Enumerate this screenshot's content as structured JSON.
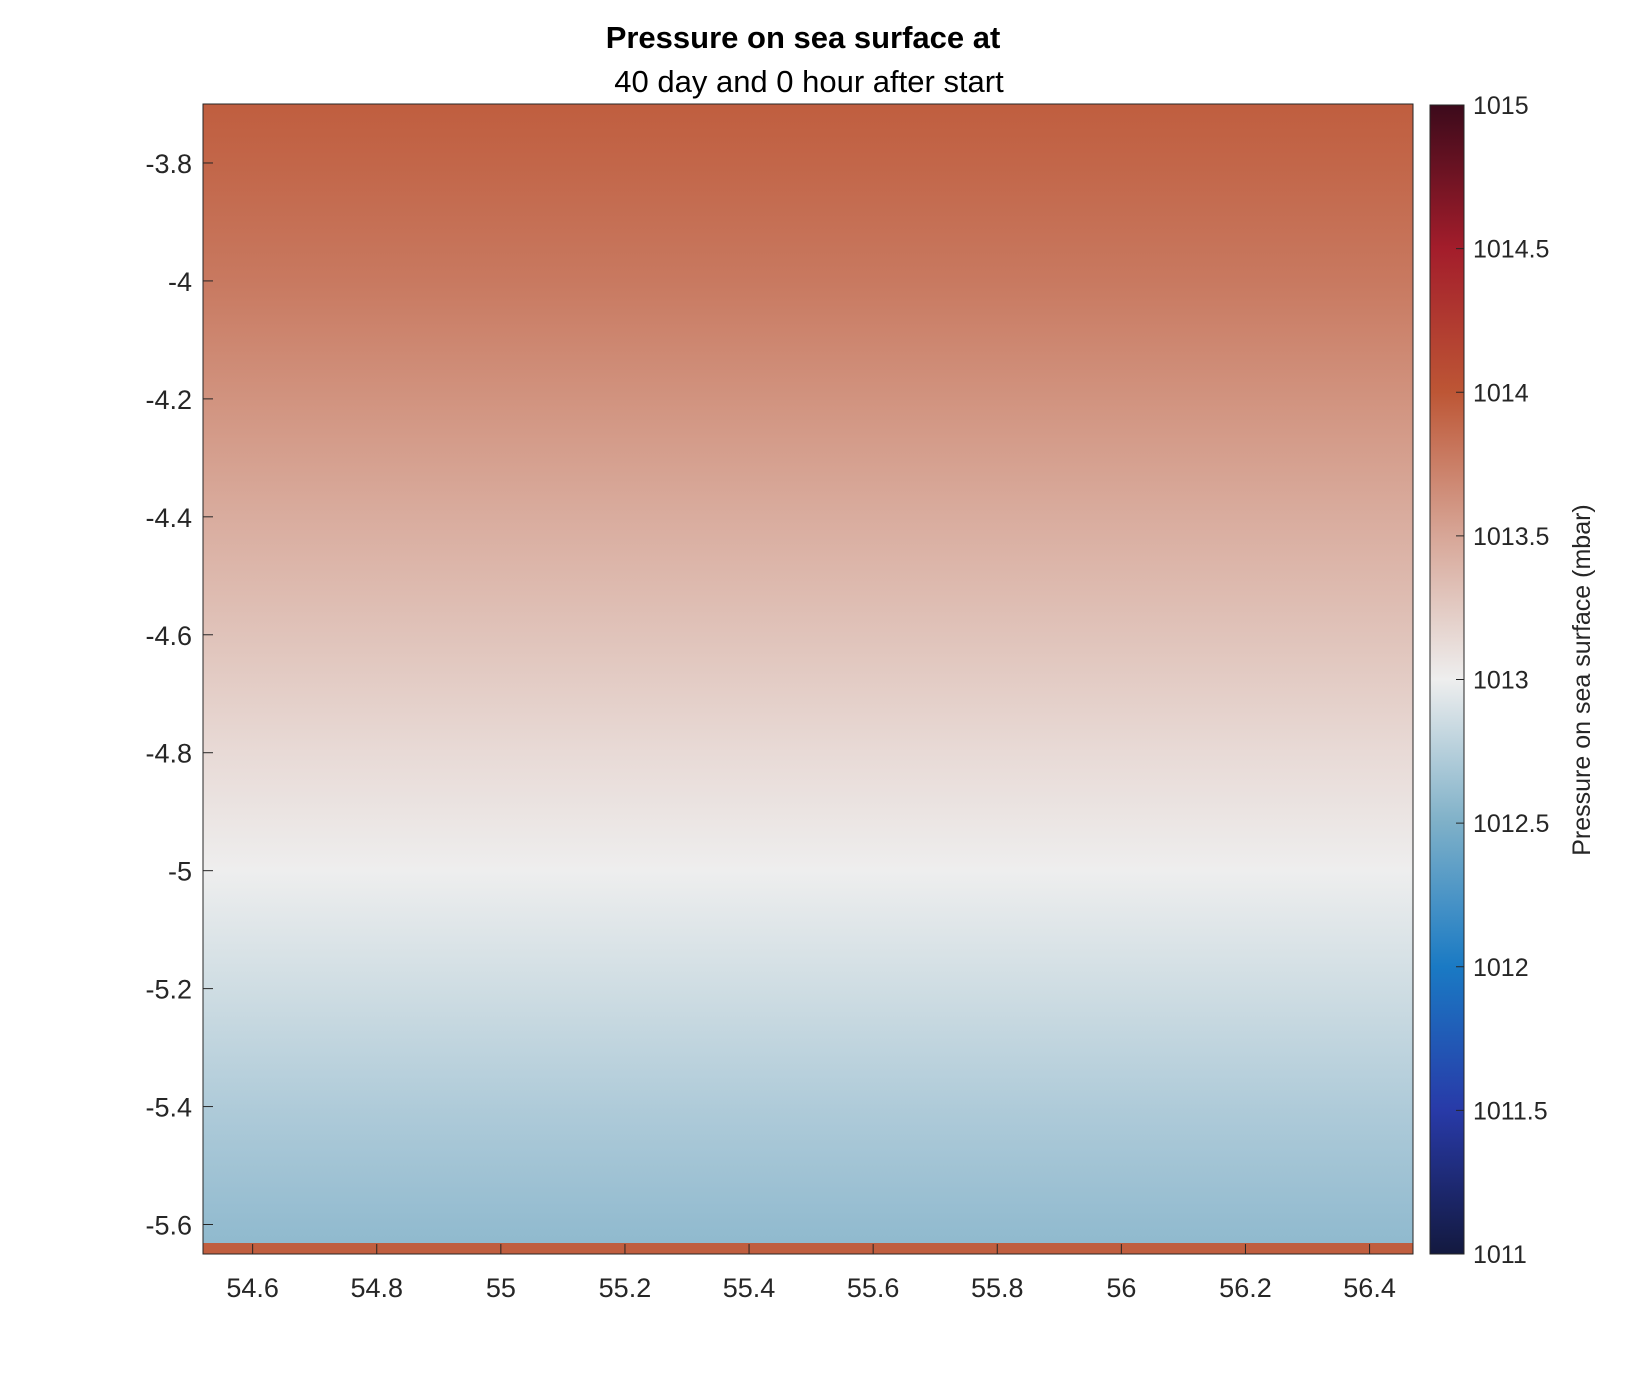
{
  "chart_data": {
    "type": "heatmap",
    "title": "Pressure on sea surface at",
    "subtitle": "40 day and 0 hour after start",
    "xlabel": "",
    "ylabel": "",
    "xlim": [
      54.52,
      56.47
    ],
    "ylim": [
      -5.65,
      -3.7
    ],
    "x_ticks": [
      "54.6",
      "54.8",
      "55",
      "55.2",
      "55.4",
      "55.6",
      "55.8",
      "56",
      "56.2",
      "56.4"
    ],
    "y_ticks": [
      "-3.8",
      "-4",
      "-4.2",
      "-4.4",
      "-4.6",
      "-4.8",
      "-5",
      "-5.2",
      "-5.4",
      "-5.6"
    ],
    "field_profile": {
      "description_axis": "y",
      "y": [
        -3.7,
        -3.8,
        -4.0,
        -4.2,
        -4.4,
        -4.6,
        -4.8,
        -5.0,
        -5.2,
        -5.4,
        -5.6,
        -5.63
      ],
      "value": [
        1013.95,
        1013.9,
        1013.78,
        1013.62,
        1013.46,
        1013.3,
        1013.14,
        1013.0,
        1012.86,
        1012.72,
        1012.6,
        1012.58
      ],
      "bottom_row_y": [
        -5.63,
        -5.65
      ],
      "bottom_row_value": 1013.95
    },
    "colorbar": {
      "label": "Pressure on sea surface (mbar)",
      "range": [
        1011,
        1015
      ],
      "ticks": [
        "1011",
        "1011.5",
        "1012",
        "1012.5",
        "1013",
        "1013.5",
        "1014",
        "1014.5",
        "1015"
      ],
      "colormap_stops": [
        {
          "value": 1011.0,
          "color": "#13193f"
        },
        {
          "value": 1011.5,
          "color": "#283aa8"
        },
        {
          "value": 1012.0,
          "color": "#1a7ac4"
        },
        {
          "value": 1012.5,
          "color": "#7eb0c8"
        },
        {
          "value": 1013.0,
          "color": "#eeeeee"
        },
        {
          "value": 1013.5,
          "color": "#d7a697"
        },
        {
          "value": 1014.0,
          "color": "#bd5635"
        },
        {
          "value": 1014.5,
          "color": "#a31d2b"
        },
        {
          "value": 1015.0,
          "color": "#3c0a1b"
        }
      ]
    }
  }
}
